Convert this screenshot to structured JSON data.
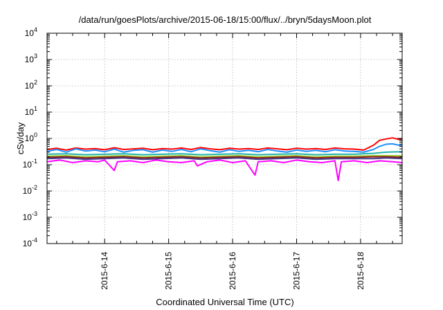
{
  "chart_data": {
    "type": "line",
    "title": "/data/run/goesPlots/archive/2015-06-18/15:00/flux/../bryn/5daysMoon.plot",
    "xlabel": "Coordinated Universal Time (UTC)",
    "ylabel": "cSv/day",
    "yscale": "log",
    "ylim": [
      0.0001,
      10000
    ],
    "xlim": [
      13.1,
      18.65
    ],
    "y_ticks": [
      {
        "base": "10",
        "exp": "4",
        "value": 10000
      },
      {
        "base": "10",
        "exp": "3",
        "value": 1000
      },
      {
        "base": "10",
        "exp": "2",
        "value": 100
      },
      {
        "base": "10",
        "exp": "1",
        "value": 10
      },
      {
        "base": "10",
        "exp": "0",
        "value": 1
      },
      {
        "base": "10",
        "exp": "-1",
        "value": 0.1
      },
      {
        "base": "10",
        "exp": "-2",
        "value": 0.01
      },
      {
        "base": "10",
        "exp": "-3",
        "value": 0.001
      },
      {
        "base": "10",
        "exp": "-4",
        "value": 0.0001
      }
    ],
    "x_ticks": [
      {
        "label": "2015-6-14",
        "value": 14
      },
      {
        "label": "2015-6-15",
        "value": 15
      },
      {
        "label": "2015-6-16",
        "value": 16
      },
      {
        "label": "2015-6-17",
        "value": 17
      },
      {
        "label": "2015-6-18",
        "value": 18
      }
    ],
    "grid": true,
    "series": [
      {
        "color": "#ff0000",
        "x": [
          13.1,
          13.25,
          13.4,
          13.55,
          13.7,
          13.85,
          14.0,
          14.15,
          14.3,
          14.45,
          14.6,
          14.75,
          14.9,
          15.05,
          15.2,
          15.35,
          15.5,
          15.65,
          15.8,
          15.95,
          16.1,
          16.25,
          16.4,
          16.55,
          16.7,
          16.85,
          17.0,
          17.15,
          17.3,
          17.45,
          17.6,
          17.75,
          17.9,
          18.05,
          18.2,
          18.3,
          18.4,
          18.5,
          18.6,
          18.65
        ],
        "y": [
          0.38,
          0.42,
          0.36,
          0.43,
          0.39,
          0.41,
          0.37,
          0.44,
          0.38,
          0.4,
          0.42,
          0.37,
          0.41,
          0.39,
          0.43,
          0.38,
          0.45,
          0.4,
          0.37,
          0.42,
          0.39,
          0.41,
          0.38,
          0.43,
          0.4,
          0.37,
          0.42,
          0.39,
          0.41,
          0.38,
          0.43,
          0.4,
          0.39,
          0.36,
          0.55,
          0.85,
          0.95,
          1.05,
          0.9,
          0.95
        ]
      },
      {
        "color": "#1e90ff",
        "x": [
          13.1,
          13.25,
          13.4,
          13.55,
          13.7,
          13.85,
          14.0,
          14.15,
          14.3,
          14.45,
          14.6,
          14.75,
          14.9,
          15.05,
          15.2,
          15.35,
          15.5,
          15.65,
          15.8,
          15.95,
          16.1,
          16.25,
          16.4,
          16.55,
          16.7,
          16.85,
          17.0,
          17.15,
          17.3,
          17.45,
          17.6,
          17.75,
          17.9,
          18.05,
          18.2,
          18.3,
          18.4,
          18.5,
          18.6,
          18.65
        ],
        "y": [
          0.32,
          0.38,
          0.3,
          0.4,
          0.33,
          0.36,
          0.31,
          0.39,
          0.3,
          0.35,
          0.37,
          0.3,
          0.36,
          0.32,
          0.38,
          0.31,
          0.4,
          0.34,
          0.3,
          0.37,
          0.32,
          0.35,
          0.31,
          0.38,
          0.33,
          0.3,
          0.36,
          0.32,
          0.35,
          0.31,
          0.37,
          0.33,
          0.32,
          0.3,
          0.38,
          0.5,
          0.6,
          0.62,
          0.55,
          0.52
        ]
      },
      {
        "color": "#20b2aa",
        "x": [
          13.1,
          13.4,
          13.7,
          14.0,
          14.3,
          14.6,
          14.9,
          15.2,
          15.5,
          15.8,
          16.1,
          16.4,
          16.7,
          17.0,
          17.3,
          17.6,
          17.9,
          18.2,
          18.4,
          18.65
        ],
        "y": [
          0.25,
          0.26,
          0.24,
          0.25,
          0.26,
          0.24,
          0.25,
          0.26,
          0.24,
          0.25,
          0.26,
          0.24,
          0.25,
          0.26,
          0.24,
          0.25,
          0.25,
          0.27,
          0.3,
          0.31
        ]
      },
      {
        "color": "#9acd32",
        "x": [
          13.1,
          13.4,
          13.7,
          14.0,
          14.3,
          14.6,
          14.9,
          15.2,
          15.5,
          15.8,
          16.1,
          16.4,
          16.7,
          17.0,
          17.3,
          17.6,
          17.9,
          18.2,
          18.4,
          18.65
        ],
        "y": [
          0.21,
          0.22,
          0.2,
          0.21,
          0.22,
          0.2,
          0.21,
          0.22,
          0.2,
          0.21,
          0.22,
          0.2,
          0.21,
          0.22,
          0.2,
          0.21,
          0.21,
          0.22,
          0.22,
          0.22
        ]
      },
      {
        "color": "#8b1a1a",
        "x": [
          13.1,
          13.4,
          13.7,
          14.0,
          14.3,
          14.6,
          14.9,
          15.2,
          15.5,
          15.8,
          16.1,
          16.4,
          16.7,
          17.0,
          17.3,
          17.6,
          17.9,
          18.2,
          18.4,
          18.65
        ],
        "y": [
          0.19,
          0.2,
          0.18,
          0.19,
          0.2,
          0.18,
          0.19,
          0.2,
          0.18,
          0.19,
          0.2,
          0.18,
          0.19,
          0.2,
          0.18,
          0.19,
          0.19,
          0.2,
          0.2,
          0.19
        ]
      },
      {
        "color": "#483d8b",
        "x": [
          13.1,
          13.4,
          13.7,
          14.0,
          14.3,
          14.6,
          14.9,
          15.2,
          15.5,
          15.8,
          16.1,
          16.4,
          16.7,
          17.0,
          17.3,
          17.6,
          17.9,
          18.2,
          18.4,
          18.65
        ],
        "y": [
          0.17,
          0.18,
          0.16,
          0.17,
          0.18,
          0.16,
          0.17,
          0.18,
          0.16,
          0.17,
          0.18,
          0.16,
          0.17,
          0.18,
          0.16,
          0.17,
          0.17,
          0.17,
          0.18,
          0.17
        ]
      },
      {
        "color": "#ff00ff",
        "x": [
          13.1,
          13.3,
          13.5,
          13.7,
          13.9,
          14.0,
          14.15,
          14.2,
          14.4,
          14.6,
          14.8,
          15.0,
          15.2,
          15.4,
          15.45,
          15.6,
          15.8,
          16.0,
          16.2,
          16.35,
          16.4,
          16.6,
          16.8,
          17.0,
          17.2,
          17.4,
          17.6,
          17.65,
          17.7,
          17.9,
          18.1,
          18.3,
          18.5,
          18.65
        ],
        "y": [
          0.13,
          0.15,
          0.12,
          0.14,
          0.13,
          0.15,
          0.06,
          0.13,
          0.14,
          0.12,
          0.15,
          0.13,
          0.12,
          0.14,
          0.09,
          0.13,
          0.15,
          0.12,
          0.14,
          0.04,
          0.13,
          0.14,
          0.12,
          0.15,
          0.13,
          0.12,
          0.14,
          0.025,
          0.13,
          0.14,
          0.12,
          0.14,
          0.13,
          0.12
        ]
      }
    ]
  }
}
